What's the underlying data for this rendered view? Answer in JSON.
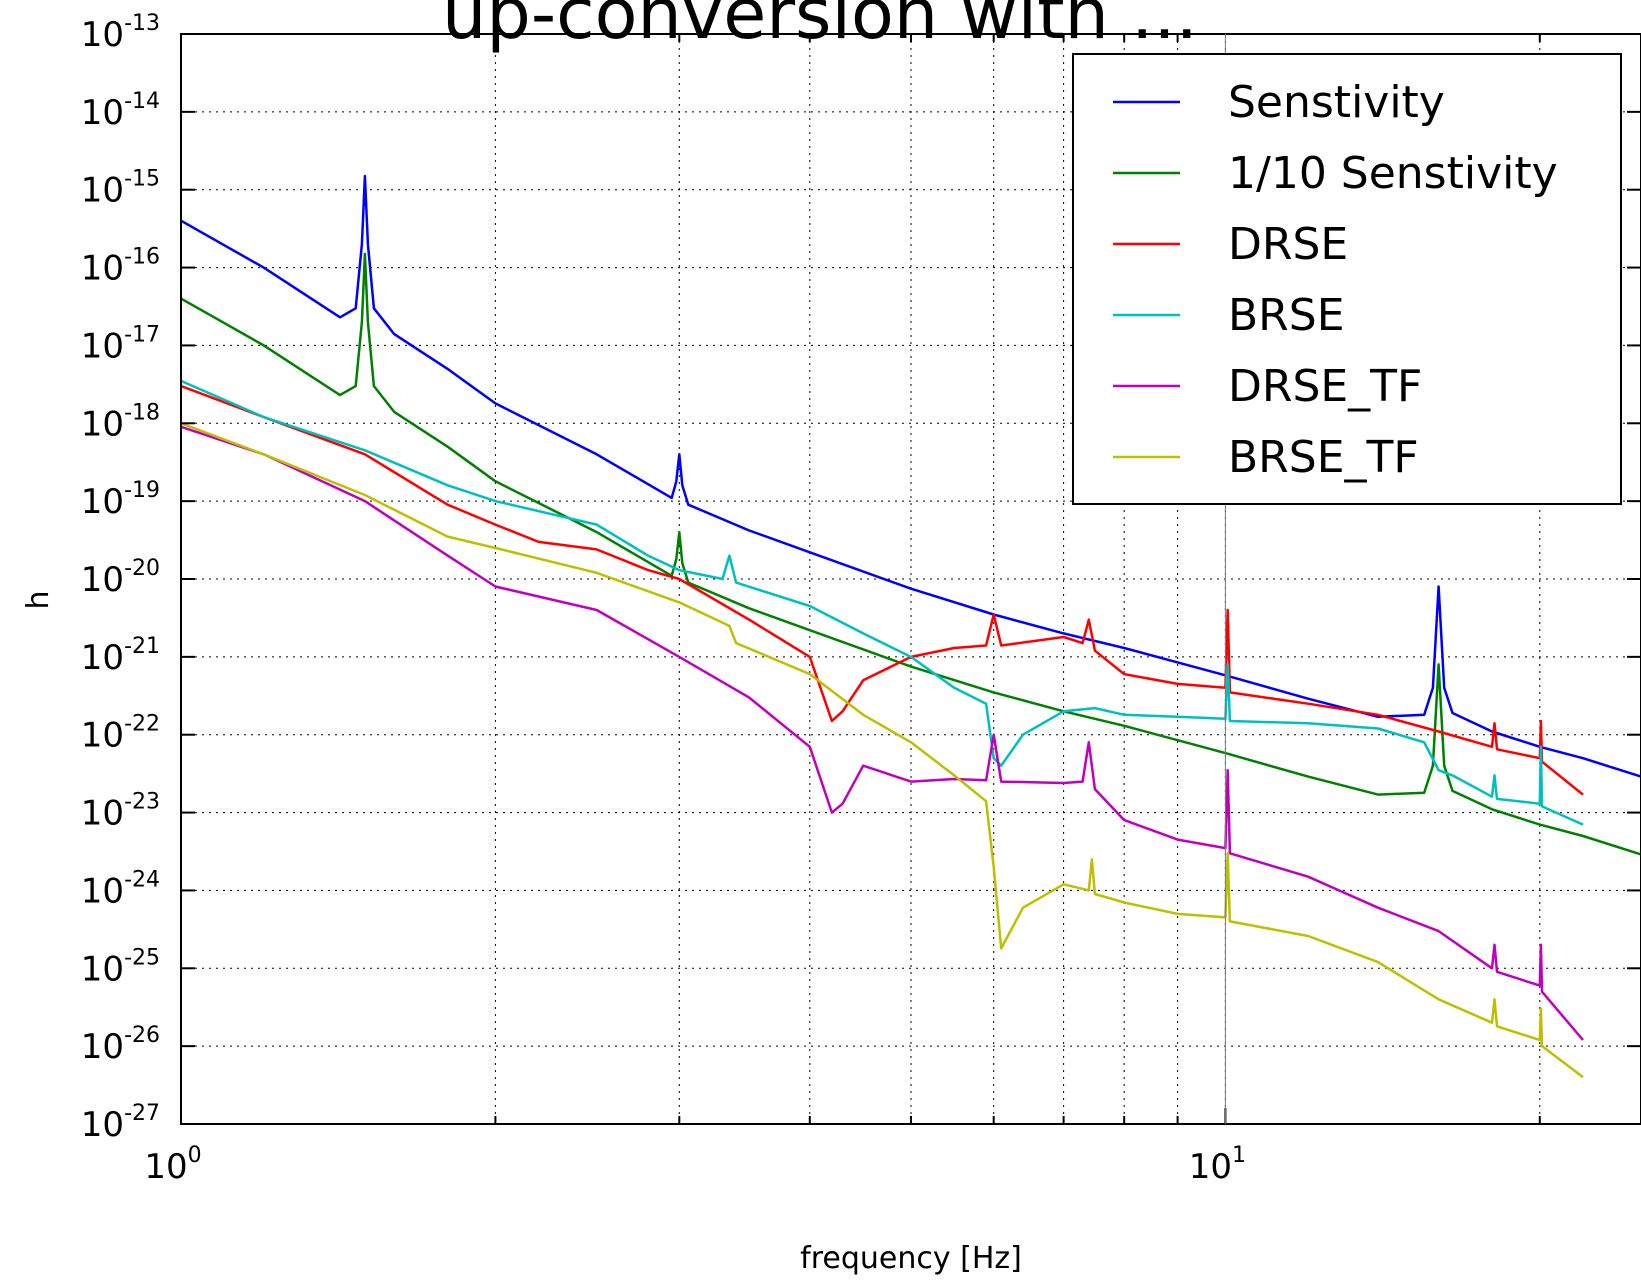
{
  "chart_data": {
    "type": "line",
    "title": "up-conversion with ...",
    "xlabel": "frequency [Hz]",
    "ylabel": "h",
    "xscale": "log",
    "yscale": "log",
    "xlim": [
      1,
      25
    ],
    "ylim": [
      1e-27,
      1e-13
    ],
    "grid": true,
    "legend_position": "top-right",
    "x_ticks": [
      {
        "base": "10",
        "exp": "0",
        "value": 1
      },
      {
        "base": "10",
        "exp": "1",
        "value": 10
      }
    ],
    "y_ticks": [
      {
        "base": "10",
        "exp": "-13",
        "value": -13
      },
      {
        "base": "10",
        "exp": "-14",
        "value": -14
      },
      {
        "base": "10",
        "exp": "-15",
        "value": -15
      },
      {
        "base": "10",
        "exp": "-16",
        "value": -16
      },
      {
        "base": "10",
        "exp": "-17",
        "value": -17
      },
      {
        "base": "10",
        "exp": "-18",
        "value": -18
      },
      {
        "base": "10",
        "exp": "-19",
        "value": -19
      },
      {
        "base": "10",
        "exp": "-20",
        "value": -20
      },
      {
        "base": "10",
        "exp": "-21",
        "value": -21
      },
      {
        "base": "10",
        "exp": "-22",
        "value": -22
      },
      {
        "base": "10",
        "exp": "-23",
        "value": -23
      },
      {
        "base": "10",
        "exp": "-24",
        "value": -24
      },
      {
        "base": "10",
        "exp": "-25",
        "value": -25
      },
      {
        "base": "10",
        "exp": "-26",
        "value": -26
      },
      {
        "base": "10",
        "exp": "-27",
        "value": -27
      }
    ],
    "series": [
      {
        "name": "Senstivity",
        "color": "#0000ff",
        "points": [
          [
            1,
            4e-16
          ],
          [
            1.2,
            1e-16
          ],
          [
            1.42,
            2.3e-17
          ],
          [
            1.47,
            3e-17
          ],
          [
            1.49,
            2e-16
          ],
          [
            1.5,
            1.5e-15
          ],
          [
            1.51,
            2e-16
          ],
          [
            1.53,
            3e-17
          ],
          [
            1.6,
            1.4e-17
          ],
          [
            1.8,
            5e-18
          ],
          [
            2,
            1.8e-18
          ],
          [
            2.5,
            4e-19
          ],
          [
            2.95,
            1.1e-19
          ],
          [
            2.98,
            1.8e-19
          ],
          [
            3.0,
            4e-19
          ],
          [
            3.02,
            1.6e-19
          ],
          [
            3.06,
            9e-20
          ],
          [
            3.5,
            4.2e-20
          ],
          [
            4,
            2.2e-20
          ],
          [
            5,
            7.5e-21
          ],
          [
            6,
            3.5e-21
          ],
          [
            7,
            2e-21
          ],
          [
            8,
            1.3e-21
          ],
          [
            10,
            5.8e-22
          ],
          [
            12,
            2.9e-22
          ],
          [
            14,
            1.7e-22
          ],
          [
            15.5,
            1.8e-22
          ],
          [
            15.8,
            4e-22
          ],
          [
            16,
            8e-21
          ],
          [
            16.2,
            4e-22
          ],
          [
            16.5,
            1.9e-22
          ],
          [
            18,
            1.1e-22
          ],
          [
            20,
            7e-23
          ],
          [
            22,
            5e-23
          ],
          [
            25,
            2.9e-23
          ]
        ]
      },
      {
        "name": "1/10 Senstivity",
        "color": "#008000",
        "points": [
          [
            1,
            4e-17
          ],
          [
            1.2,
            1e-17
          ],
          [
            1.42,
            2.3e-18
          ],
          [
            1.47,
            3e-18
          ],
          [
            1.49,
            2e-17
          ],
          [
            1.5,
            1.5e-16
          ],
          [
            1.51,
            2e-17
          ],
          [
            1.53,
            3e-18
          ],
          [
            1.6,
            1.4e-18
          ],
          [
            1.8,
            5e-19
          ],
          [
            2,
            1.8e-19
          ],
          [
            2.5,
            4e-20
          ],
          [
            2.95,
            1.1e-20
          ],
          [
            2.98,
            1.8e-20
          ],
          [
            3.0,
            4e-20
          ],
          [
            3.02,
            1.6e-20
          ],
          [
            3.06,
            9e-21
          ],
          [
            3.5,
            4.2e-21
          ],
          [
            4,
            2.2e-21
          ],
          [
            5,
            7.5e-22
          ],
          [
            6,
            3.5e-22
          ],
          [
            7,
            2e-22
          ],
          [
            8,
            1.3e-22
          ],
          [
            10,
            5.8e-23
          ],
          [
            12,
            2.9e-23
          ],
          [
            14,
            1.7e-23
          ],
          [
            15.5,
            1.8e-23
          ],
          [
            15.8,
            4e-23
          ],
          [
            16,
            8e-22
          ],
          [
            16.2,
            4e-23
          ],
          [
            16.5,
            1.9e-23
          ],
          [
            18,
            1.1e-23
          ],
          [
            20,
            7e-24
          ],
          [
            22,
            5e-24
          ],
          [
            25,
            2.9e-24
          ]
        ]
      },
      {
        "name": "DRSE",
        "color": "#ff0000",
        "points": [
          [
            1,
            3e-18
          ],
          [
            1.2,
            1.2e-18
          ],
          [
            1.5,
            4e-19
          ],
          [
            1.8,
            9e-20
          ],
          [
            2,
            5e-20
          ],
          [
            2.2,
            3e-20
          ],
          [
            2.5,
            2.4e-20
          ],
          [
            2.8,
            1.3e-20
          ],
          [
            3,
            1e-20
          ],
          [
            3.5,
            3e-21
          ],
          [
            4,
            1e-21
          ],
          [
            4.2,
            1.5e-22
          ],
          [
            4.3,
            2e-22
          ],
          [
            4.5,
            5e-22
          ],
          [
            5,
            1e-21
          ],
          [
            5.5,
            1.3e-21
          ],
          [
            5.9,
            1.4e-21
          ],
          [
            6,
            3.5e-21
          ],
          [
            6.1,
            1.4e-21
          ],
          [
            7,
            1.8e-21
          ],
          [
            7.3,
            1.5e-21
          ],
          [
            7.4,
            3e-21
          ],
          [
            7.5,
            1.2e-21
          ],
          [
            8,
            6e-22
          ],
          [
            9,
            4.5e-22
          ],
          [
            10,
            4e-22
          ],
          [
            10.05,
            4e-21
          ],
          [
            10.1,
            3.5e-22
          ],
          [
            12,
            2.5e-22
          ],
          [
            14,
            1.8e-22
          ],
          [
            16,
            1.1e-22
          ],
          [
            18,
            7e-23
          ],
          [
            18.1,
            1.4e-22
          ],
          [
            18.2,
            6.5e-23
          ],
          [
            20,
            5e-23
          ],
          [
            20.05,
            1.5e-22
          ],
          [
            20.1,
            4.5e-23
          ],
          [
            22,
            1.7e-23
          ]
        ]
      },
      {
        "name": "BRSE",
        "color": "#00bfbf",
        "points": [
          [
            1,
            3.5e-18
          ],
          [
            1.2,
            1.2e-18
          ],
          [
            1.5,
            4.5e-19
          ],
          [
            1.8,
            1.6e-19
          ],
          [
            2,
            1e-19
          ],
          [
            2.5,
            5e-20
          ],
          [
            2.8,
            2e-20
          ],
          [
            3,
            1.3e-20
          ],
          [
            3.3,
            1e-20
          ],
          [
            3.35,
            2e-20
          ],
          [
            3.4,
            9e-21
          ],
          [
            4,
            4.5e-21
          ],
          [
            4.5,
            2e-21
          ],
          [
            5,
            1e-21
          ],
          [
            5.5,
            4e-22
          ],
          [
            5.9,
            2.5e-22
          ],
          [
            6.0,
            5e-23
          ],
          [
            6.1,
            4e-23
          ],
          [
            6.4,
            1e-22
          ],
          [
            7,
            2e-22
          ],
          [
            7.5,
            2.2e-22
          ],
          [
            8,
            1.8e-22
          ],
          [
            9,
            1.7e-22
          ],
          [
            10,
            1.6e-22
          ],
          [
            10.05,
            8e-22
          ],
          [
            10.1,
            1.5e-22
          ],
          [
            12,
            1.4e-22
          ],
          [
            14,
            1.2e-22
          ],
          [
            15.5,
            8e-23
          ],
          [
            16,
            3.5e-23
          ],
          [
            16.5,
            3e-23
          ],
          [
            18,
            1.6e-23
          ],
          [
            18.1,
            3e-23
          ],
          [
            18.2,
            1.5e-23
          ],
          [
            20,
            1.3e-23
          ],
          [
            20.05,
            7e-23
          ],
          [
            20.1,
            1.2e-23
          ],
          [
            22,
            7e-24
          ]
        ]
      },
      {
        "name": "DRSE_TF",
        "color": "#bf00bf",
        "points": [
          [
            1,
            9e-19
          ],
          [
            1.2,
            4e-19
          ],
          [
            1.5,
            1e-19
          ],
          [
            1.8,
            2e-20
          ],
          [
            2,
            8e-21
          ],
          [
            2.5,
            4e-21
          ],
          [
            3,
            1e-21
          ],
          [
            3.5,
            3e-22
          ],
          [
            4,
            7e-23
          ],
          [
            4.2,
            1e-23
          ],
          [
            4.3,
            1.3e-23
          ],
          [
            4.5,
            4e-23
          ],
          [
            5,
            2.5e-23
          ],
          [
            5.5,
            2.7e-23
          ],
          [
            5.9,
            2.6e-23
          ],
          [
            6,
            1e-22
          ],
          [
            6.1,
            2.5e-23
          ],
          [
            7,
            2.4e-23
          ],
          [
            7.3,
            2.5e-23
          ],
          [
            7.4,
            8e-23
          ],
          [
            7.5,
            2e-23
          ],
          [
            8,
            8e-24
          ],
          [
            9,
            4.5e-24
          ],
          [
            10,
            3.5e-24
          ],
          [
            10.05,
            3.5e-23
          ],
          [
            10.1,
            3e-24
          ],
          [
            12,
            1.5e-24
          ],
          [
            14,
            6e-25
          ],
          [
            16,
            3e-25
          ],
          [
            18,
            1e-25
          ],
          [
            18.1,
            2e-25
          ],
          [
            18.2,
            9e-26
          ],
          [
            20,
            6e-26
          ],
          [
            20.05,
            2e-25
          ],
          [
            20.1,
            5e-26
          ],
          [
            22,
            1.2e-26
          ]
        ]
      },
      {
        "name": "BRSE_TF",
        "color": "#bfbf00",
        "points": [
          [
            1,
            1e-18
          ],
          [
            1.2,
            4e-19
          ],
          [
            1.5,
            1.2e-19
          ],
          [
            1.8,
            3.5e-20
          ],
          [
            2,
            2.5e-20
          ],
          [
            2.5,
            1.2e-20
          ],
          [
            3,
            5e-21
          ],
          [
            3.35,
            2.5e-21
          ],
          [
            3.4,
            1.5e-21
          ],
          [
            4,
            6e-22
          ],
          [
            4.5,
            1.8e-22
          ],
          [
            5,
            8e-23
          ],
          [
            5.5,
            3e-23
          ],
          [
            5.9,
            1.4e-23
          ],
          [
            6.0,
            2e-24
          ],
          [
            6.1,
            1.8e-25
          ],
          [
            6.4,
            6e-25
          ],
          [
            7,
            1.2e-24
          ],
          [
            7.4,
            1e-24
          ],
          [
            7.45,
            2.5e-24
          ],
          [
            7.5,
            9e-25
          ],
          [
            8,
            7e-25
          ],
          [
            9,
            5e-25
          ],
          [
            10,
            4.5e-25
          ],
          [
            10.05,
            3e-24
          ],
          [
            10.1,
            4e-25
          ],
          [
            12,
            2.6e-25
          ],
          [
            14,
            1.2e-25
          ],
          [
            16,
            4e-26
          ],
          [
            18,
            2e-26
          ],
          [
            18.1,
            4e-26
          ],
          [
            18.2,
            1.8e-26
          ],
          [
            20,
            1.2e-26
          ],
          [
            20.05,
            3e-26
          ],
          [
            20.1,
            1e-26
          ],
          [
            22,
            4e-27
          ]
        ]
      }
    ]
  }
}
